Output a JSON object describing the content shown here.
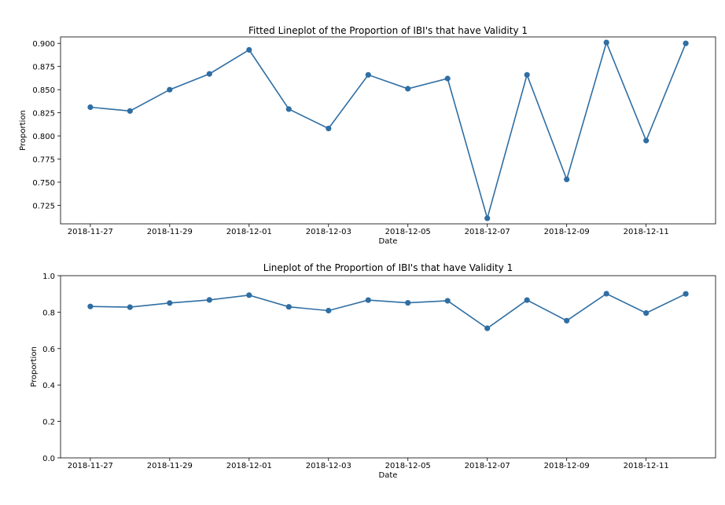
{
  "chart_data": [
    {
      "type": "line",
      "title": "Fitted Lineplot of the Proportion of IBI's that have Validity 1",
      "xlabel": "Date",
      "ylabel": "Proportion",
      "x": [
        "2018-11-27",
        "2018-11-28",
        "2018-11-29",
        "2018-11-30",
        "2018-12-01",
        "2018-12-02",
        "2018-12-03",
        "2018-12-04",
        "2018-12-05",
        "2018-12-06",
        "2018-12-07",
        "2018-12-08",
        "2018-12-09",
        "2018-12-10",
        "2018-12-11",
        "2018-12-12"
      ],
      "x_tick_labels": [
        "2018-11-27",
        "2018-11-29",
        "2018-12-01",
        "2018-12-03",
        "2018-12-05",
        "2018-12-07",
        "2018-12-09",
        "2018-12-11"
      ],
      "y_ticks": [
        "0.725",
        "0.750",
        "0.775",
        "0.800",
        "0.825",
        "0.850",
        "0.875",
        "0.900"
      ],
      "ylim": [
        0.705,
        0.907
      ],
      "series": [
        {
          "values": [
            0.831,
            0.827,
            0.85,
            0.867,
            0.893,
            0.829,
            0.808,
            0.866,
            0.851,
            0.862,
            0.711,
            0.866,
            0.753,
            0.901,
            0.795,
            0.9
          ]
        }
      ],
      "marker": "circle",
      "grid": false,
      "color": "#2f6ea3"
    },
    {
      "type": "line",
      "title": "Lineplot of the Proportion of IBI's that have Validity 1",
      "xlabel": "Date",
      "ylabel": "Proportion",
      "x": [
        "2018-11-27",
        "2018-11-28",
        "2018-11-29",
        "2018-11-30",
        "2018-12-01",
        "2018-12-02",
        "2018-12-03",
        "2018-12-04",
        "2018-12-05",
        "2018-12-06",
        "2018-12-07",
        "2018-12-08",
        "2018-12-09",
        "2018-12-10",
        "2018-12-11",
        "2018-12-12"
      ],
      "x_tick_labels": [
        "2018-11-27",
        "2018-11-29",
        "2018-12-01",
        "2018-12-03",
        "2018-12-05",
        "2018-12-07",
        "2018-12-09",
        "2018-12-11"
      ],
      "y_ticks": [
        "0.0",
        "0.2",
        "0.4",
        "0.6",
        "0.8",
        "1.0"
      ],
      "ylim": [
        0,
        1
      ],
      "series": [
        {
          "values": [
            0.831,
            0.827,
            0.85,
            0.867,
            0.893,
            0.829,
            0.808,
            0.866,
            0.851,
            0.862,
            0.711,
            0.866,
            0.753,
            0.901,
            0.795,
            0.9
          ]
        }
      ],
      "marker": "circle",
      "grid": false,
      "color": "#2f6ea3"
    }
  ]
}
